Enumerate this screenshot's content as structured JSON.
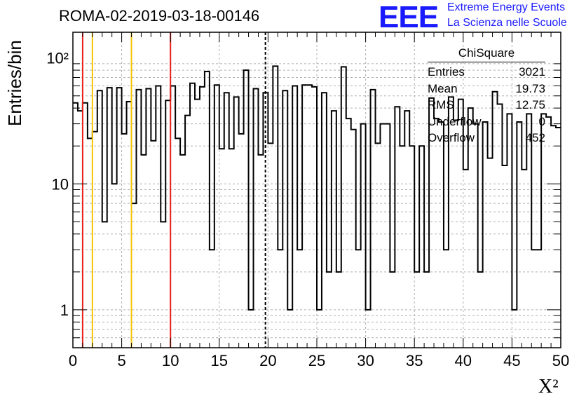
{
  "header": {
    "title": "ROMA-02-2019-03-18-00146",
    "logo_letters": "EEE",
    "logo_line1": "Extreme Energy Events",
    "logo_line2": "La Scienza nelle Scuole"
  },
  "stats": {
    "name": "ChiSquare",
    "rows": [
      {
        "label": "Entries",
        "value": "3021"
      },
      {
        "label": "Mean",
        "value": "19.73"
      },
      {
        "label": "RMS",
        "value": "12.75"
      },
      {
        "label": "Underflow",
        "value": "0"
      },
      {
        "label": "Overflow",
        "value": "452"
      }
    ]
  },
  "colors": {
    "red_line": "#e8201a",
    "yellow_line": "#f5c400",
    "logo": "#1a1aff"
  },
  "chart_data": {
    "type": "histogram",
    "title": "ROMA-02-2019-03-18-00146",
    "xlabel": "X²",
    "ylabel": "Entries/bin",
    "xlim": [
      0,
      50
    ],
    "ylim": [
      0.5,
      160
    ],
    "yscale": "log",
    "bin_width": 0.5,
    "xticks": [
      0,
      5,
      10,
      15,
      20,
      25,
      30,
      35,
      40,
      45,
      50
    ],
    "xtick_labels": [
      "0",
      "5",
      "10",
      "15",
      "20",
      "25",
      "30",
      "35",
      "40",
      "45",
      "50"
    ],
    "yticks": [
      1,
      10,
      100
    ],
    "ytick_labels": [
      "1",
      "10",
      "10²"
    ],
    "values": [
      44,
      38,
      44,
      23,
      26,
      55,
      5,
      58,
      10,
      58,
      25,
      45,
      7,
      56,
      17,
      57,
      22,
      60,
      5,
      46,
      60,
      23,
      17,
      35,
      63,
      47,
      59,
      78,
      3,
      61,
      19,
      53,
      19,
      49,
      25,
      80,
      1,
      57,
      17,
      53,
      21,
      86,
      3,
      55,
      1,
      60,
      3,
      61,
      61,
      59,
      1,
      53,
      2,
      38,
      2,
      85,
      33,
      27,
      3,
      30,
      1,
      56,
      21,
      30,
      30,
      2,
      41,
      20,
      38,
      20,
      2,
      20,
      2,
      48,
      33,
      31,
      3,
      49,
      32,
      47,
      13,
      40,
      30,
      2,
      31,
      16,
      54,
      43,
      14,
      36,
      1,
      31,
      13,
      36,
      3,
      3,
      36,
      34,
      29,
      28
    ],
    "vertical_lines": [
      {
        "x": 1,
        "color": "red",
        "style": "solid"
      },
      {
        "x": 2,
        "color": "yellow",
        "style": "solid"
      },
      {
        "x": 6,
        "color": "yellow",
        "style": "solid"
      },
      {
        "x": 10,
        "color": "red",
        "style": "solid"
      },
      {
        "x": 19.73,
        "color": "black",
        "style": "dashed"
      }
    ]
  }
}
